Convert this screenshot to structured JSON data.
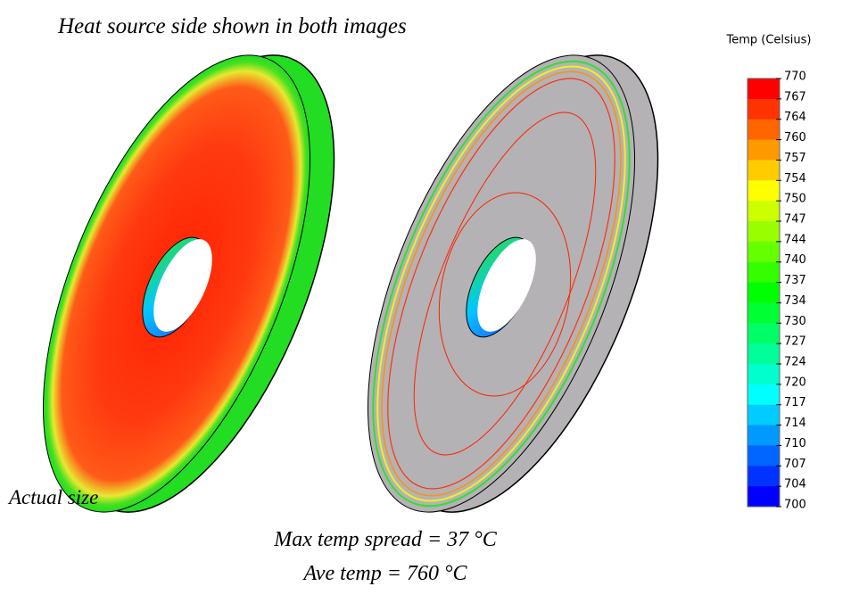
{
  "header": {
    "title": "Heat source side shown in both images"
  },
  "colorbar": {
    "title": "Temp (Celsius)",
    "labels": [
      "770",
      "767",
      "764",
      "760",
      "757",
      "754",
      "750",
      "747",
      "744",
      "740",
      "737",
      "734",
      "730",
      "727",
      "724",
      "720",
      "717",
      "714",
      "710",
      "707",
      "704",
      "700"
    ]
  },
  "notes": {
    "scale": "Actual size",
    "spread": "Max temp spread = 37 °C",
    "average": "Ave temp = 760 °C"
  }
}
